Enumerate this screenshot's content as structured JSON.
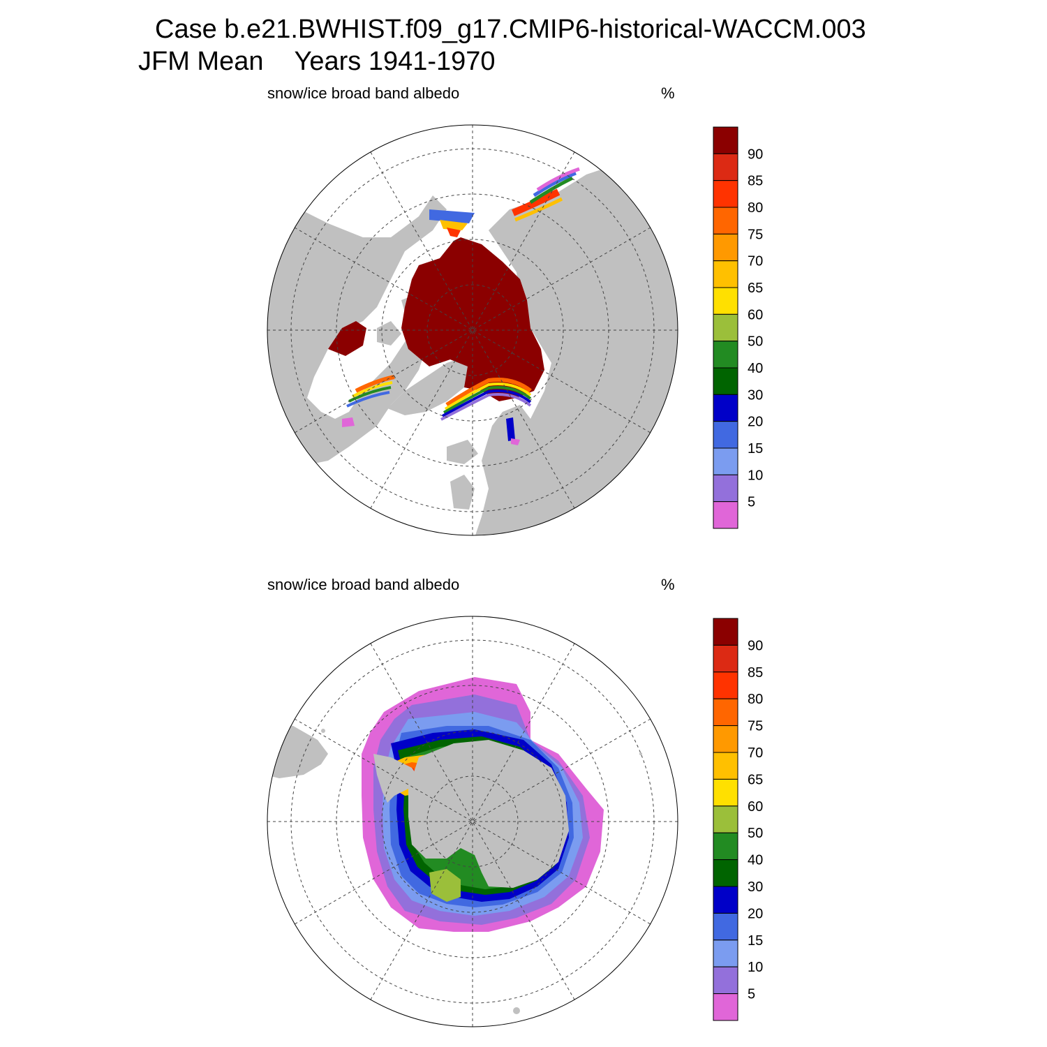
{
  "header": {
    "case_line": "Case b.e21.BWHIST.f09_g17.CMIP6-historical-WACCM.003",
    "season": "JFM Mean",
    "years": "Years 1941-1970"
  },
  "colors": {
    "land": "#c0c0c0",
    "ocean": "#ffffff",
    "scale": [
      "#e066d8",
      "#9370db",
      "#7b9cf0",
      "#4169e1",
      "#0000c8",
      "#006400",
      "#228b22",
      "#9bbf3a",
      "#ffe000",
      "#ffc000",
      "#ff9900",
      "#ff6600",
      "#ff3300",
      "#dc2a14",
      "#8b0000"
    ]
  },
  "panels": [
    {
      "id": "north",
      "hemisphere": "Northern Hemisphere",
      "variable": "snow/ice broad band albedo",
      "units": "%",
      "colorbar_labels": [
        "90",
        "85",
        "80",
        "75",
        "70",
        "65",
        "60",
        "50",
        "40",
        "30",
        "20",
        "15",
        "10",
        "5"
      ]
    },
    {
      "id": "south",
      "hemisphere": "Southern Hemisphere",
      "variable": "snow/ice broad band albedo",
      "units": "%",
      "colorbar_labels": [
        "90",
        "85",
        "80",
        "75",
        "70",
        "65",
        "60",
        "50",
        "40",
        "30",
        "20",
        "15",
        "10",
        "5"
      ]
    }
  ]
}
